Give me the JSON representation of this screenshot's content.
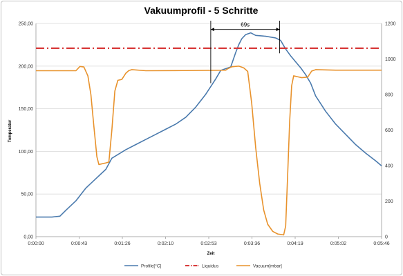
{
  "chart_data": {
    "type": "line",
    "title": "Vakuumprofil - 5 Schritte",
    "xlabel": "Zeit",
    "ylabel": "Temperatur",
    "y2label": "",
    "x_tick_labels": [
      "0:00:00",
      "0:00:43",
      "0:01:26",
      "0:02:10",
      "0:02:53",
      "0:03:36",
      "0:04:19",
      "0:05:02",
      "0:05:46"
    ],
    "x_range_seconds": [
      0,
      346
    ],
    "ylim": [
      0,
      250
    ],
    "y_ticks": [
      "0,00",
      "50,00",
      "100,00",
      "150,00",
      "200,00",
      "250,00"
    ],
    "y2lim": [
      0,
      1200
    ],
    "y2_ticks": [
      "0",
      "200",
      "400",
      "600",
      "800",
      "1000",
      "1200"
    ],
    "grid": "horizontal",
    "legend_position": "bottom",
    "annotation": {
      "label": "69s",
      "from_seconds": 175,
      "to_seconds": 244,
      "y_value": 243
    },
    "series": [
      {
        "name": "Profile[°C]",
        "axis": "left",
        "color": "#4a7aad",
        "style": "solid",
        "points": [
          [
            0,
            23
          ],
          [
            16,
            23
          ],
          [
            24,
            24
          ],
          [
            30,
            31
          ],
          [
            40,
            42
          ],
          [
            50,
            57
          ],
          [
            60,
            68
          ],
          [
            70,
            79
          ],
          [
            76,
            92
          ],
          [
            90,
            102
          ],
          [
            100,
            108
          ],
          [
            110,
            114
          ],
          [
            120,
            120
          ],
          [
            130,
            126
          ],
          [
            140,
            132
          ],
          [
            150,
            140
          ],
          [
            160,
            152
          ],
          [
            170,
            167
          ],
          [
            180,
            185
          ],
          [
            185,
            195
          ],
          [
            190,
            197
          ],
          [
            195,
            199
          ],
          [
            200,
            216
          ],
          [
            203,
            225
          ],
          [
            206,
            232
          ],
          [
            210,
            237
          ],
          [
            215,
            239
          ],
          [
            220,
            236
          ],
          [
            230,
            235
          ],
          [
            240,
            233
          ],
          [
            245,
            230
          ],
          [
            250,
            220
          ],
          [
            255,
            212
          ],
          [
            260,
            205
          ],
          [
            265,
            198
          ],
          [
            270,
            190
          ],
          [
            275,
            180
          ],
          [
            280,
            165
          ],
          [
            290,
            147
          ],
          [
            300,
            132
          ],
          [
            310,
            120
          ],
          [
            320,
            108
          ],
          [
            330,
            98
          ],
          [
            340,
            89
          ],
          [
            346,
            83
          ]
        ]
      },
      {
        "name": "Liquidus",
        "axis": "left",
        "color": "#d83a3a",
        "style": "dash-dot",
        "points": [
          [
            0,
            221
          ],
          [
            346,
            221
          ]
        ]
      },
      {
        "name": "Vacuum[mbar]",
        "axis": "right",
        "color": "#e8922c",
        "style": "solid",
        "points": [
          [
            0,
            934
          ],
          [
            40,
            934
          ],
          [
            44,
            958
          ],
          [
            48,
            955
          ],
          [
            52,
            905
          ],
          [
            55,
            800
          ],
          [
            58,
            620
          ],
          [
            61,
            450
          ],
          [
            63,
            406
          ],
          [
            66,
            410
          ],
          [
            70,
            415
          ],
          [
            73,
            420
          ],
          [
            76,
            600
          ],
          [
            79,
            820
          ],
          [
            82,
            880
          ],
          [
            86,
            885
          ],
          [
            90,
            920
          ],
          [
            93,
            935
          ],
          [
            96,
            940
          ],
          [
            110,
            934
          ],
          [
            150,
            935
          ],
          [
            190,
            937
          ],
          [
            192,
            945
          ],
          [
            196,
            956
          ],
          [
            203,
            960
          ],
          [
            208,
            950
          ],
          [
            212,
            930
          ],
          [
            216,
            750
          ],
          [
            220,
            500
          ],
          [
            224,
            300
          ],
          [
            228,
            150
          ],
          [
            232,
            70
          ],
          [
            237,
            30
          ],
          [
            242,
            15
          ],
          [
            248,
            10
          ],
          [
            250,
            60
          ],
          [
            252,
            350
          ],
          [
            254,
            650
          ],
          [
            256,
            850
          ],
          [
            258,
            905
          ],
          [
            262,
            900
          ],
          [
            266,
            895
          ],
          [
            272,
            898
          ],
          [
            276,
            932
          ],
          [
            280,
            940
          ],
          [
            300,
            937
          ],
          [
            346,
            937
          ]
        ]
      }
    ]
  }
}
